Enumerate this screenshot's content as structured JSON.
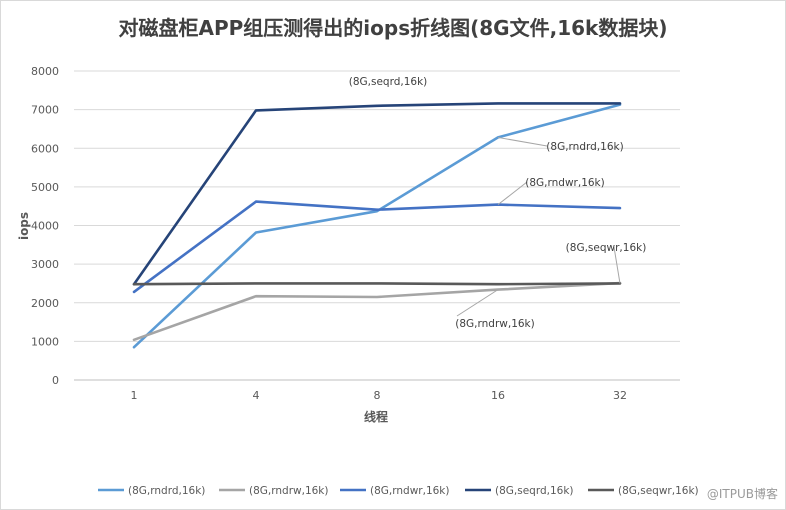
{
  "chart_data": {
    "type": "line",
    "title": "对磁盘柜APP组压测得出的iops折线图(8G文件,16k数据块)",
    "xlabel": "线程",
    "ylabel": "iops",
    "categories": [
      "1",
      "4",
      "8",
      "16",
      "32"
    ],
    "ylim": [
      0,
      8000
    ],
    "yticks": [
      0,
      1000,
      2000,
      3000,
      4000,
      5000,
      6000,
      7000,
      8000
    ],
    "grid": true,
    "legend": "bottom",
    "series": [
      {
        "name": "(8G,rndrd,16k)",
        "color": "#5b9bd5",
        "values": [
          850,
          3820,
          4370,
          6280,
          7130
        ]
      },
      {
        "name": "(8G,rndrw,16k)",
        "color": "#a5a5a5",
        "values": [
          1040,
          2170,
          2150,
          2340,
          2510
        ]
      },
      {
        "name": "(8G,rndwr,16k)",
        "color": "#4472c4",
        "values": [
          2280,
          4620,
          4410,
          4540,
          4450
        ]
      },
      {
        "name": "(8G,seqrd,16k)",
        "color": "#264478",
        "values": [
          2480,
          6980,
          7100,
          7160,
          7160
        ]
      },
      {
        "name": "(8G,seqwr,16k)",
        "color": "#595959",
        "values": [
          2480,
          2500,
          2500,
          2480,
          2500
        ]
      }
    ],
    "annotations": [
      {
        "text": "(8G,seqrd,16k)"
      },
      {
        "text": "(8G,rndrd,16k)"
      },
      {
        "text": "(8G,rndwr,16k)"
      },
      {
        "text": "(8G,seqwr,16k)"
      },
      {
        "text": "(8G,rndrw,16k)"
      }
    ]
  },
  "watermark": "@ITPUB博客"
}
